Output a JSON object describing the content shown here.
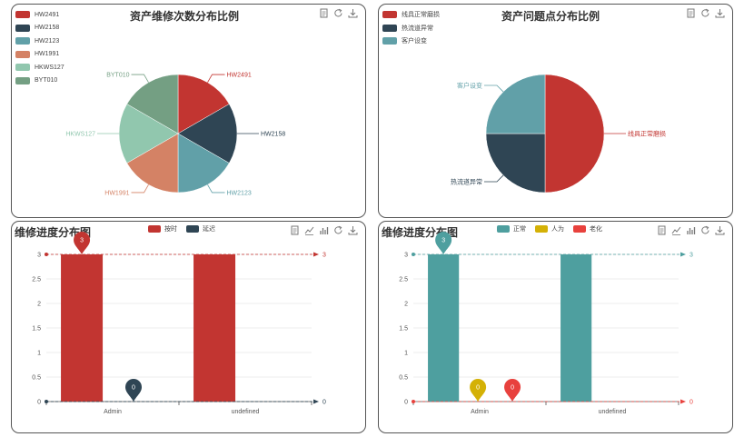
{
  "toolbox_icons": [
    "data-view-icon",
    "refresh-icon",
    "download-icon"
  ],
  "toolbox_icons_bar": [
    "data-view-icon",
    "line-chart-icon",
    "bar-chart-icon",
    "refresh-icon",
    "download-icon"
  ],
  "chart_data": [
    {
      "type": "pie",
      "title": "资产维修次数分布比例",
      "legend_placement": "top-left",
      "categories": [
        "HW2491",
        "HW2158",
        "HW2123",
        "HW1991",
        "HKWS127",
        "BYT010"
      ],
      "values": [
        1,
        1,
        1,
        1,
        1,
        1
      ],
      "colors": [
        "#c23531",
        "#2f4554",
        "#61a0a8",
        "#d48265",
        "#91c7ae",
        "#749f83"
      ]
    },
    {
      "type": "pie",
      "title": "资产问题点分布比例",
      "legend_placement": "top-left",
      "categories": [
        "线具正常磨损",
        "热流道异常",
        "客户设变"
      ],
      "values": [
        2,
        1,
        1
      ],
      "colors": [
        "#c23531",
        "#2f4554",
        "#61a0a8"
      ]
    },
    {
      "type": "bar",
      "title": "维修进度分布图",
      "legend_placement": "top-center",
      "categories": [
        "Admin",
        "undefined"
      ],
      "series": [
        {
          "name": "按时",
          "color": "#c23531",
          "values": [
            3,
            3
          ],
          "max_mark": 3,
          "markline": 3
        },
        {
          "name": "延迟",
          "color": "#2f4554",
          "values": [
            0,
            0
          ],
          "max_mark": 0,
          "markline": 0
        }
      ],
      "ylim": [
        0,
        3
      ],
      "yticks": [
        "0",
        "0.5",
        "1",
        "1.5",
        "2",
        "2.5",
        "3"
      ],
      "grid": true
    },
    {
      "type": "bar",
      "title": "维修进度分布图",
      "legend_placement": "top-center",
      "categories": [
        "Admin",
        "undefined"
      ],
      "series": [
        {
          "name": "正常",
          "color": "#4e9f9f",
          "values": [
            3,
            3
          ],
          "max_mark": 3,
          "markline": 3
        },
        {
          "name": "人为",
          "color": "#d4b106",
          "values": [
            0,
            0
          ],
          "max_mark": 0
        },
        {
          "name": "老化",
          "color": "#e8413d",
          "values": [
            0,
            0
          ],
          "max_mark": 0,
          "markline": 0
        }
      ],
      "ylim": [
        0,
        3
      ],
      "yticks": [
        "0",
        "0.5",
        "1",
        "1.5",
        "2",
        "2.5",
        "3"
      ],
      "grid": true
    }
  ]
}
